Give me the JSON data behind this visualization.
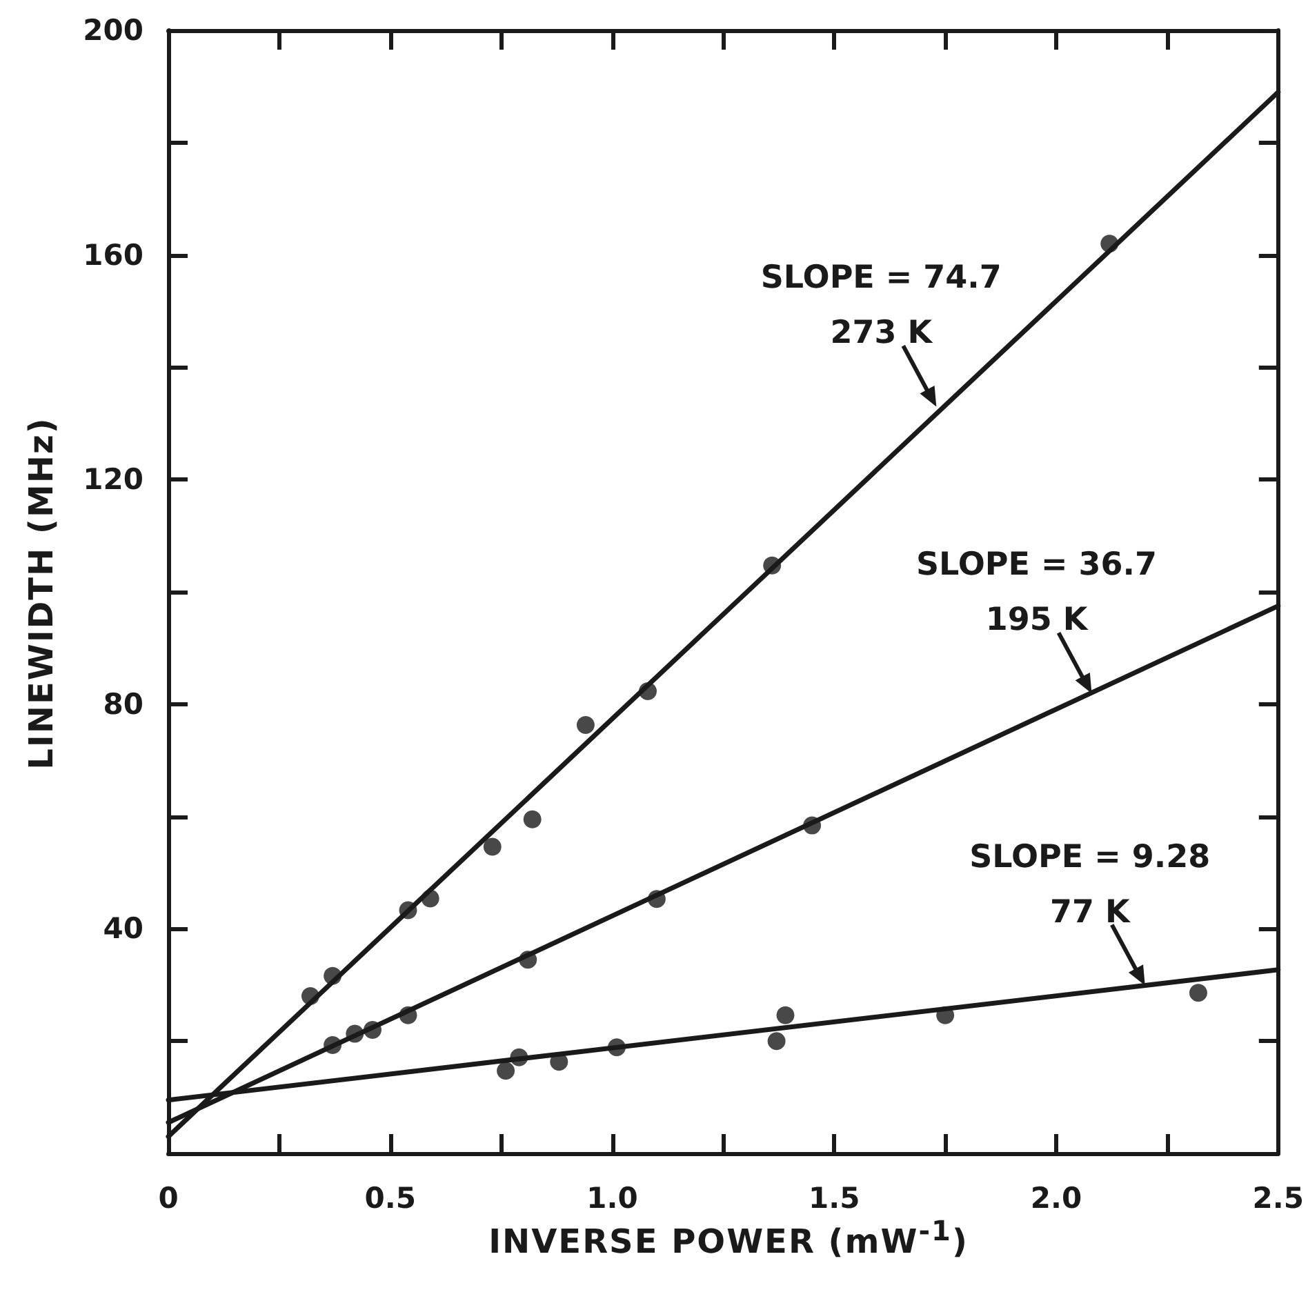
{
  "chart_data": {
    "type": "scatter",
    "xlabel": "INVERSE POWER (mW$^{-1}$)",
    "ylabel": "LINEWIDTH (MHz)",
    "xlim": [
      0,
      2.5
    ],
    "ylim": [
      0,
      200
    ],
    "xticks": [
      0,
      {
        "value": 0.25,
        "label": null
      },
      {
        "value": 0.5,
        "label": "0.5"
      },
      {
        "value": 0.75,
        "label": null
      },
      {
        "value": 1,
        "label": "1.0"
      },
      {
        "value": 1.25,
        "label": null
      },
      {
        "value": 1.5,
        "label": "1.5"
      },
      {
        "value": 1.75,
        "label": null
      },
      {
        "value": 2,
        "label": "2.0"
      },
      {
        "value": 2.25,
        "label": null
      },
      {
        "value": 2.5,
        "label": "2.5"
      }
    ],
    "yticks": [
      {
        "value": 0,
        "label": null
      },
      {
        "value": 20,
        "label": null
      },
      40,
      {
        "value": 60,
        "label": null
      },
      80,
      {
        "value": 100,
        "label": null
      },
      120,
      {
        "value": 140,
        "label": null
      },
      160,
      {
        "value": 180,
        "label": null
      },
      200
    ],
    "grid": false,
    "series": [
      {
        "marker": "circle",
        "color": "#1a1a1a",
        "x": [
          0.32,
          0.37,
          0.54,
          0.59,
          0.73,
          0.82,
          0.94,
          1.08,
          1.36,
          2.12
        ],
        "values": [
          28,
          31.6,
          43.3,
          45.4,
          54.6,
          59.5,
          76.3,
          82.3,
          104.7,
          162
        ]
      },
      {
        "marker": "circle",
        "color": "#1a1a1a",
        "x": [
          0.37,
          0.42,
          0.46,
          0.54,
          0.81,
          1.1,
          1.45
        ],
        "values": [
          19.3,
          21.3,
          22,
          24.6,
          34.5,
          45.3,
          58.4
        ]
      },
      {
        "marker": "circle",
        "color": "#1a1a1a",
        "x": [
          0.76,
          0.79,
          0.88,
          1.01,
          1.37,
          1.39,
          1.75,
          2.32
        ],
        "values": [
          14.7,
          17.1,
          16.3,
          18.9,
          20,
          24.6,
          24.6,
          28.6
        ]
      },
      {
        "type": "line",
        "marker": "none",
        "line_style": "solid",
        "color": "#1a1a1a",
        "x": [
          0,
          2.5
        ],
        "values": [
          3,
          189
        ]
      },
      {
        "type": "line",
        "marker": "none",
        "line_style": "solid",
        "color": "#1a1a1a",
        "x": [
          0,
          2.5
        ],
        "values": [
          5.5,
          97.5
        ]
      },
      {
        "type": "line",
        "marker": "none",
        "line_style": "solid",
        "color": "#1a1a1a",
        "x": [
          0,
          2.5
        ],
        "values": [
          9.5,
          32.7
        ]
      }
    ],
    "annotations": [
      {
        "text": "SLOPE = 74.7\n273 K",
        "x": 1.73,
        "y": 133
      },
      {
        "text": "SLOPE = 36.7\n195 K",
        "x": 2.08,
        "y": 81.9
      },
      {
        "text": "SLOPE = 9.28\n77 K",
        "x": 2.2,
        "y": 29.9
      }
    ]
  }
}
